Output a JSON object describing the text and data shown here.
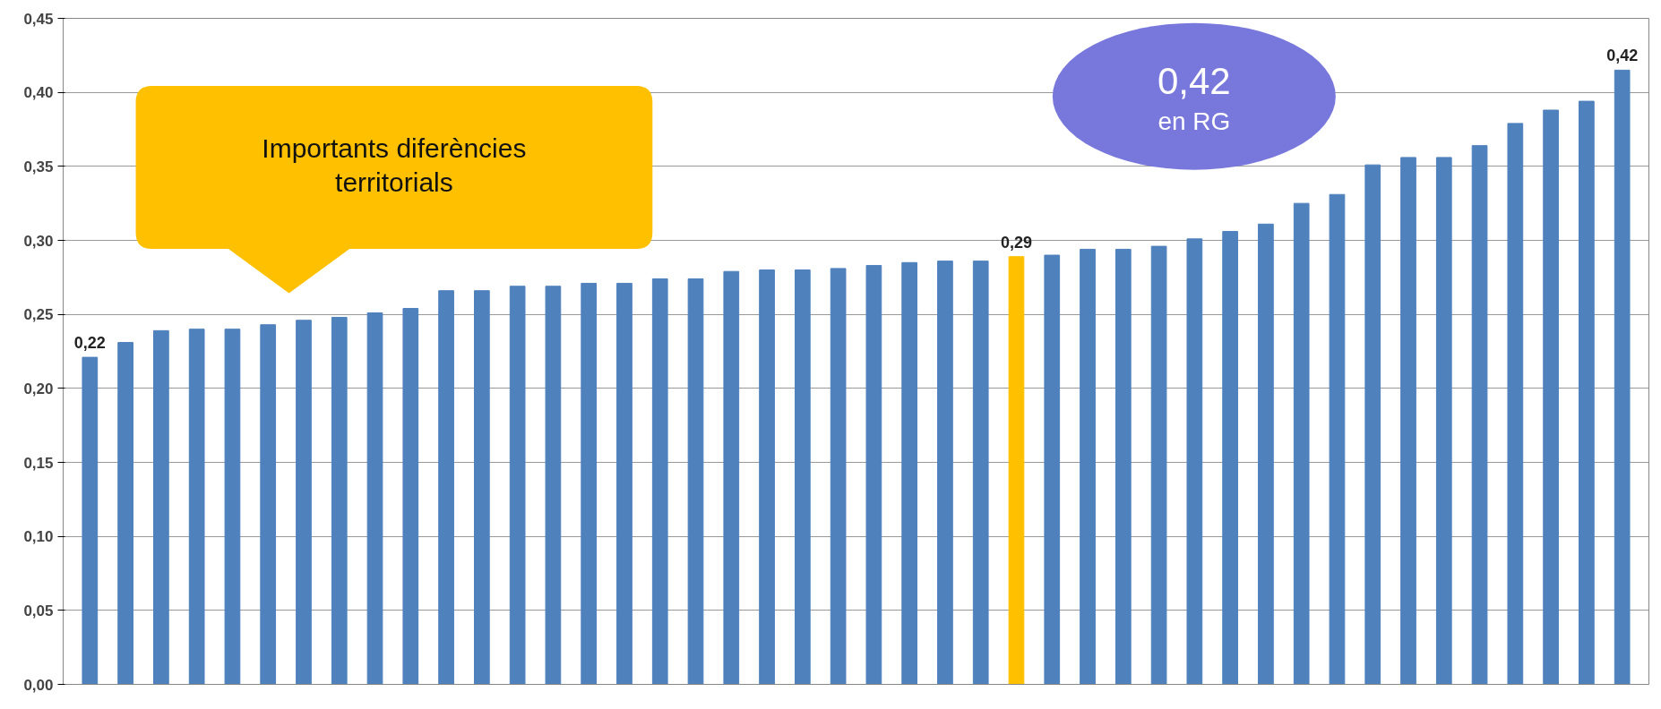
{
  "chart_data": {
    "type": "bar",
    "categories": [
      null,
      null,
      null,
      null,
      null,
      null,
      null,
      null,
      null,
      null,
      null,
      null,
      null,
      null,
      null,
      null,
      null,
      null,
      null,
      null,
      null,
      null,
      null,
      null,
      null,
      null,
      null,
      null,
      null,
      null,
      null,
      null,
      null,
      null,
      null,
      null,
      null,
      null,
      null,
      null,
      null,
      null,
      null,
      null
    ],
    "values": [
      0.221,
      0.231,
      0.239,
      0.24,
      0.24,
      0.243,
      0.246,
      0.248,
      0.251,
      0.254,
      0.266,
      0.266,
      0.269,
      0.269,
      0.271,
      0.271,
      0.274,
      0.274,
      0.279,
      0.28,
      0.28,
      0.281,
      0.283,
      0.285,
      0.286,
      0.286,
      0.289,
      0.29,
      0.294,
      0.294,
      0.296,
      0.301,
      0.306,
      0.311,
      0.325,
      0.331,
      0.351,
      0.356,
      0.356,
      0.364,
      0.379,
      0.388,
      0.394,
      0.415
    ],
    "colors": [
      "#4f81bd",
      "#4f81bd",
      "#4f81bd",
      "#4f81bd",
      "#4f81bd",
      "#4f81bd",
      "#4f81bd",
      "#4f81bd",
      "#4f81bd",
      "#4f81bd",
      "#4f81bd",
      "#4f81bd",
      "#4f81bd",
      "#4f81bd",
      "#4f81bd",
      "#4f81bd",
      "#4f81bd",
      "#4f81bd",
      "#4f81bd",
      "#4f81bd",
      "#4f81bd",
      "#4f81bd",
      "#4f81bd",
      "#4f81bd",
      "#4f81bd",
      "#4f81bd",
      "#ffc000",
      "#4f81bd",
      "#4f81bd",
      "#4f81bd",
      "#4f81bd",
      "#4f81bd",
      "#4f81bd",
      "#4f81bd",
      "#4f81bd",
      "#4f81bd",
      "#4f81bd",
      "#4f81bd",
      "#4f81bd",
      "#4f81bd",
      "#4f81bd",
      "#4f81bd",
      "#4f81bd",
      "#4f81bd"
    ],
    "value_labels": [
      "0,22",
      null,
      null,
      null,
      null,
      null,
      null,
      null,
      null,
      null,
      null,
      null,
      null,
      null,
      null,
      null,
      null,
      null,
      null,
      null,
      null,
      null,
      null,
      null,
      null,
      null,
      "0,29",
      null,
      null,
      null,
      null,
      null,
      null,
      null,
      null,
      null,
      null,
      null,
      null,
      null,
      null,
      null,
      null,
      "0,42"
    ],
    "ylim": [
      0,
      0.45
    ],
    "yticks": [
      {
        "value": 0,
        "label": "0,00"
      },
      {
        "value": 0.05,
        "label": "0,05"
      },
      {
        "value": 0.1,
        "label": "0,10"
      },
      {
        "value": 0.15,
        "label": "0,15"
      },
      {
        "value": 0.2,
        "label": "0,20"
      },
      {
        "value": 0.25,
        "label": "0,25"
      },
      {
        "value": 0.3,
        "label": "0,30"
      },
      {
        "value": 0.35,
        "label": "0,35"
      },
      {
        "value": 0.4,
        "label": "0,40"
      },
      {
        "value": 0.45,
        "label": "0,45"
      }
    ],
    "grid": "y",
    "annotations": [
      "Importants diferències territorials",
      "0,42",
      "en RG"
    ]
  }
}
